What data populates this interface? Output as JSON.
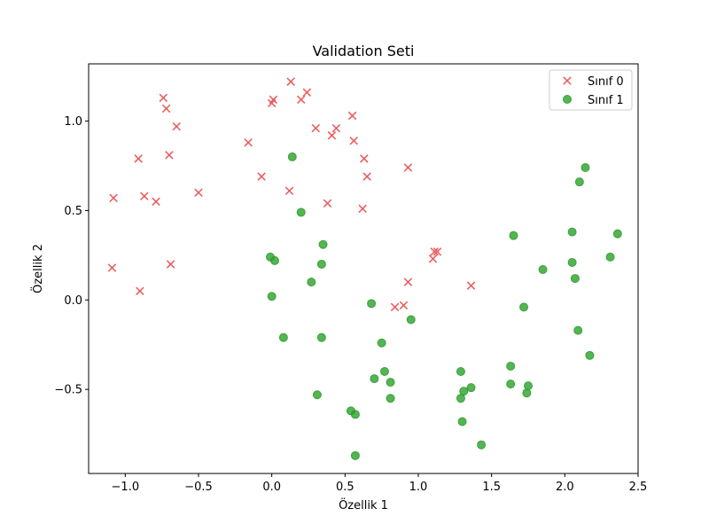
{
  "chart_data": {
    "type": "scatter",
    "title": "Validation Seti",
    "xlabel": "Özellik 1",
    "ylabel": "Özellik 2",
    "xlim": [
      -1.25,
      2.5
    ],
    "ylim": [
      -0.97,
      1.32
    ],
    "xticks": [
      -1.0,
      -0.5,
      0.0,
      0.5,
      1.0,
      1.5,
      2.0,
      2.5
    ],
    "xtick_labels": [
      "−1.0",
      "−0.5",
      "0.0",
      "0.5",
      "1.0",
      "1.5",
      "2.0",
      "2.5"
    ],
    "yticks": [
      -0.5,
      0.0,
      0.5,
      1.0
    ],
    "ytick_labels": [
      "−0.5",
      "0.0",
      "0.5",
      "1.0"
    ],
    "grid": false,
    "legend_position": "top-right",
    "series": [
      {
        "name": "Sınıf 0",
        "marker": "x",
        "color": "#e8595a",
        "points": [
          [
            -0.74,
            1.13
          ],
          [
            -0.72,
            1.07
          ],
          [
            -0.65,
            0.97
          ],
          [
            -0.91,
            0.79
          ],
          [
            -0.7,
            0.81
          ],
          [
            -1.08,
            0.57
          ],
          [
            -0.87,
            0.58
          ],
          [
            -0.79,
            0.55
          ],
          [
            -0.5,
            0.6
          ],
          [
            -1.09,
            0.18
          ],
          [
            -0.9,
            0.05
          ],
          [
            -0.69,
            0.2
          ],
          [
            -0.16,
            0.88
          ],
          [
            -0.07,
            0.69
          ],
          [
            0.0,
            1.1
          ],
          [
            0.01,
            1.12
          ],
          [
            0.13,
            1.22
          ],
          [
            0.2,
            1.12
          ],
          [
            0.24,
            1.16
          ],
          [
            0.12,
            0.61
          ],
          [
            0.3,
            0.96
          ],
          [
            0.38,
            0.54
          ],
          [
            0.41,
            0.92
          ],
          [
            0.44,
            0.96
          ],
          [
            0.55,
            1.03
          ],
          [
            0.56,
            0.89
          ],
          [
            0.63,
            0.79
          ],
          [
            0.65,
            0.69
          ],
          [
            0.62,
            0.51
          ],
          [
            0.93,
            0.74
          ],
          [
            0.84,
            -0.04
          ],
          [
            0.9,
            -0.03
          ],
          [
            0.93,
            0.1
          ],
          [
            1.1,
            0.23
          ],
          [
            1.11,
            0.27
          ],
          [
            1.13,
            0.27
          ],
          [
            1.36,
            0.08
          ]
        ]
      },
      {
        "name": "Sınıf 1",
        "marker": "o",
        "color": "#2ca02c",
        "points": [
          [
            0.14,
            0.8
          ],
          [
            0.2,
            0.49
          ],
          [
            0.35,
            0.31
          ],
          [
            0.34,
            0.2
          ],
          [
            0.27,
            0.1
          ],
          [
            -0.01,
            0.24
          ],
          [
            0.02,
            0.22
          ],
          [
            0.0,
            0.02
          ],
          [
            0.08,
            -0.21
          ],
          [
            0.34,
            -0.21
          ],
          [
            0.31,
            -0.53
          ],
          [
            0.68,
            -0.02
          ],
          [
            0.75,
            -0.24
          ],
          [
            0.77,
            -0.4
          ],
          [
            0.7,
            -0.44
          ],
          [
            0.81,
            -0.46
          ],
          [
            0.81,
            -0.55
          ],
          [
            0.54,
            -0.62
          ],
          [
            0.57,
            -0.64
          ],
          [
            0.57,
            -0.87
          ],
          [
            0.95,
            -0.11
          ],
          [
            1.29,
            -0.4
          ],
          [
            1.31,
            -0.51
          ],
          [
            1.29,
            -0.55
          ],
          [
            1.36,
            -0.49
          ],
          [
            1.3,
            -0.68
          ],
          [
            1.43,
            -0.81
          ],
          [
            1.65,
            0.36
          ],
          [
            1.72,
            -0.04
          ],
          [
            1.63,
            -0.37
          ],
          [
            1.63,
            -0.47
          ],
          [
            1.74,
            -0.52
          ],
          [
            1.75,
            -0.48
          ],
          [
            1.85,
            0.17
          ],
          [
            2.05,
            0.38
          ],
          [
            2.05,
            0.21
          ],
          [
            2.07,
            0.12
          ],
          [
            2.1,
            0.66
          ],
          [
            2.14,
            0.74
          ],
          [
            2.09,
            -0.17
          ],
          [
            2.17,
            -0.31
          ],
          [
            2.31,
            0.24
          ],
          [
            2.36,
            0.37
          ]
        ]
      }
    ]
  }
}
